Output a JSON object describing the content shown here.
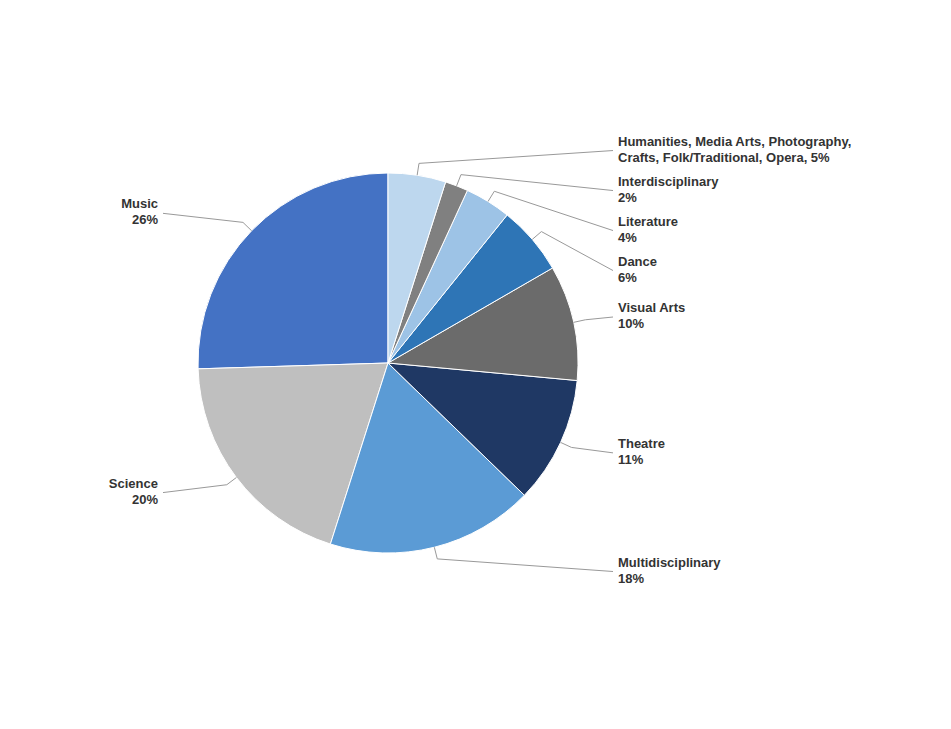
{
  "chart_data": {
    "type": "pie",
    "categories": [
      "Music\n26%",
      "Science\n20%",
      "Multidisciplinary\n18%",
      "Theatre\n11%",
      "Visual Arts\n10%",
      "Dance\n6%",
      "Literature\n4%",
      "Interdisciplinary\n2%",
      "Humanities, Media Arts, Photography,\nCrafts, Folk/Traditional, Opera, 5%"
    ],
    "values": [
      26,
      20,
      18,
      11,
      10,
      6,
      4,
      2,
      5
    ],
    "colors": [
      "#4472C4",
      "#BFBFBF",
      "#5B9BD5",
      "#1F3864",
      "#6B6B6B",
      "#2E75B6",
      "#9DC3E6",
      "#808080",
      "#BDD7EE"
    ]
  }
}
